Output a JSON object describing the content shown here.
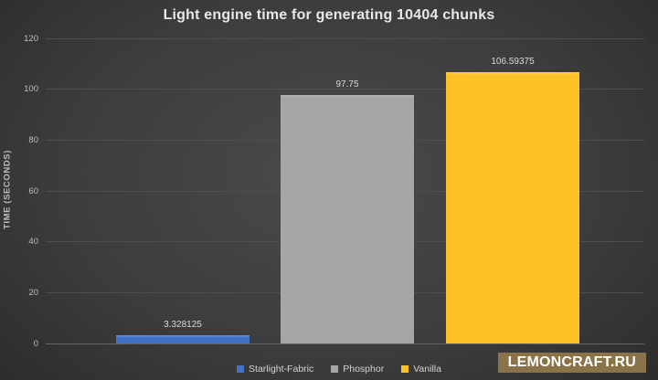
{
  "chart_data": {
    "type": "bar",
    "title": "Light engine time for generating 10404 chunks",
    "ylabel": "TIME (SECONDS)",
    "ylim": [
      0,
      120
    ],
    "yticks": [
      0,
      20,
      40,
      60,
      80,
      100,
      120
    ],
    "grid": true,
    "legend_position": "bottom",
    "categories": [
      "Starlight-Fabric",
      "Phosphor",
      "Vanilla"
    ],
    "values": [
      3.328125,
      97.75,
      106.59375
    ],
    "value_labels": [
      "3.328125",
      "97.75",
      "106.59375"
    ],
    "bar_colors": [
      "#3f6ec4",
      "#a6a6a6",
      "#fdc227"
    ],
    "bar_top_highlights": [
      "#6b93da",
      "#b2b2b2",
      "#fecf4d"
    ]
  },
  "legend": {
    "items": [
      {
        "label": "Starlight-Fabric",
        "color": "#4472c4"
      },
      {
        "label": "Phosphor",
        "color": "#a6a6a6"
      },
      {
        "label": "Vanilla",
        "color": "#fdc227"
      }
    ]
  },
  "watermark": {
    "text": "LEMONCRAFT.RU",
    "background": "#8a7348",
    "text_color": "#ffffff"
  }
}
